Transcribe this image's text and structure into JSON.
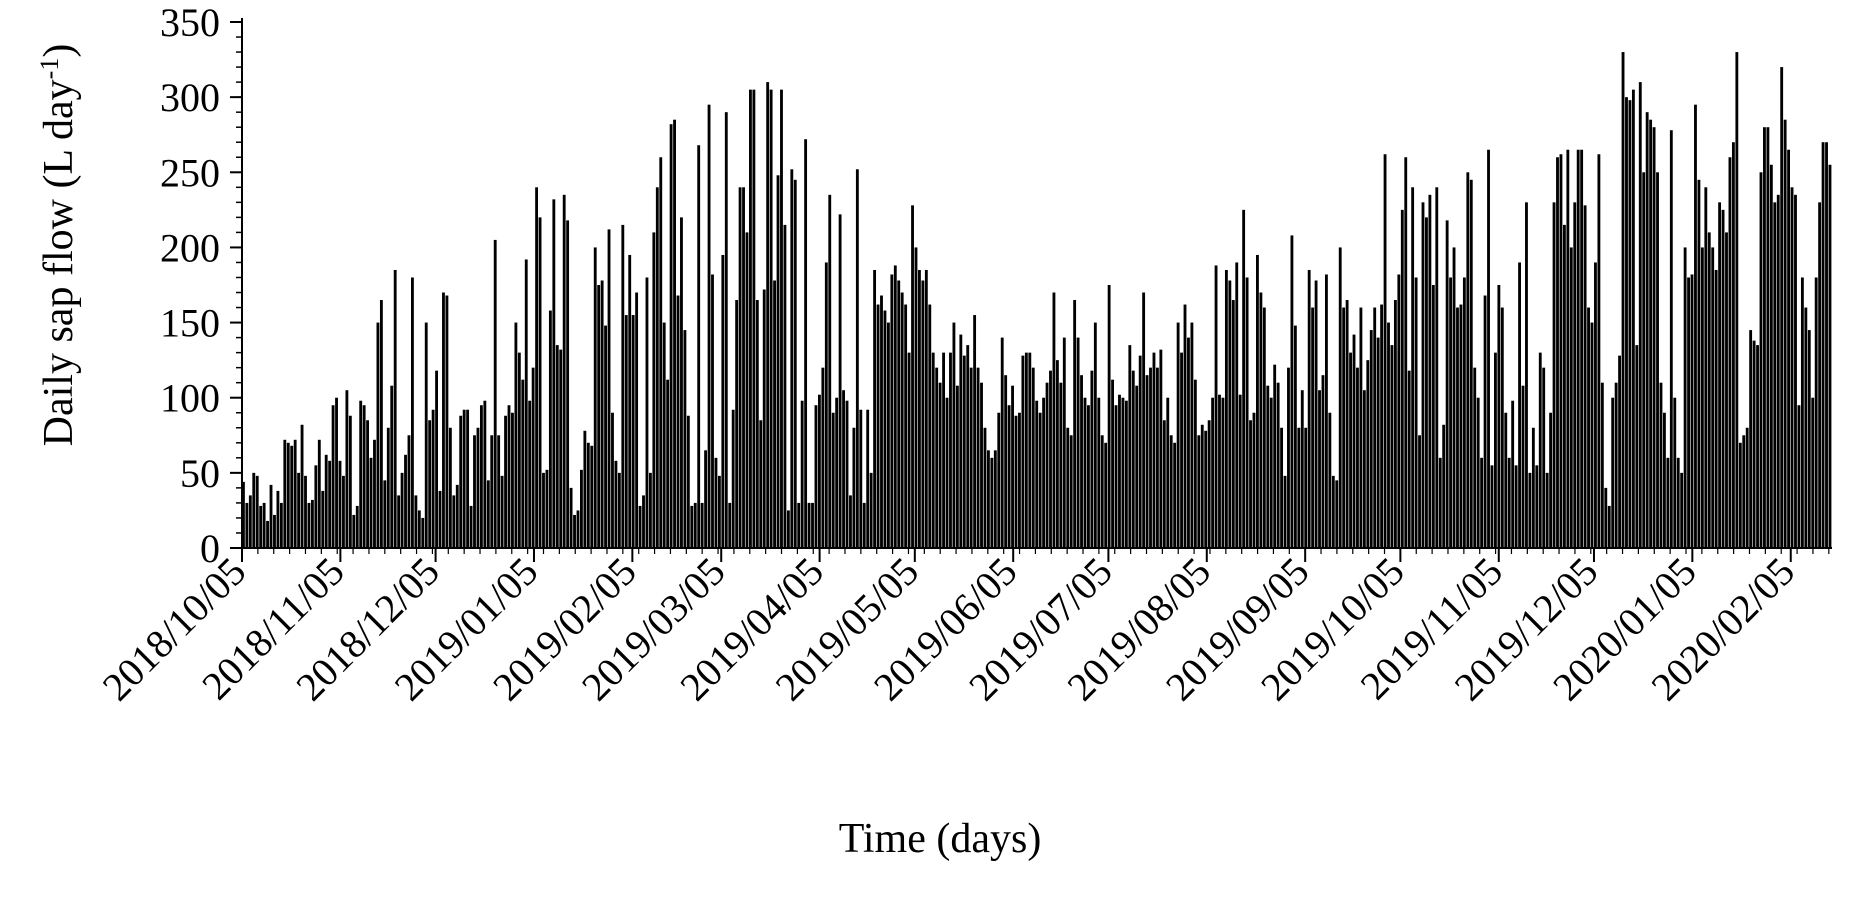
{
  "chart_data": {
    "type": "bar",
    "xlabel": "Time (days)",
    "ylabel_main": "Daily sap flow (L day",
    "ylabel_sup": "-1",
    "ylabel_close": ")",
    "ylim": [
      0,
      350
    ],
    "yticks": [
      0,
      50,
      100,
      150,
      200,
      250,
      300,
      350
    ],
    "grid": false,
    "legend": "none",
    "bar_color": "#000000",
    "x_start": "2018/10/05",
    "x_end": "2020/02/17",
    "xtick_labels": [
      "2018/10/05",
      "2018/11/05",
      "2018/12/05",
      "2019/01/05",
      "2019/02/05",
      "2019/03/05",
      "2019/04/05",
      "2019/05/05",
      "2019/06/05",
      "2019/07/05",
      "2019/08/05",
      "2019/09/05",
      "2019/10/05",
      "2019/11/05",
      "2019/12/05",
      "2020/01/05",
      "2020/02/05"
    ],
    "values": [
      44,
      30,
      35,
      50,
      48,
      28,
      30,
      18,
      42,
      22,
      38,
      30,
      72,
      70,
      68,
      72,
      50,
      82,
      48,
      30,
      32,
      55,
      72,
      38,
      62,
      58,
      95,
      100,
      58,
      48,
      105,
      88,
      22,
      28,
      98,
      95,
      85,
      60,
      72,
      150,
      165,
      45,
      80,
      108,
      185,
      35,
      50,
      62,
      75,
      180,
      35,
      25,
      20,
      150,
      85,
      92,
      118,
      38,
      170,
      168,
      80,
      35,
      42,
      88,
      92,
      92,
      28,
      75,
      80,
      95,
      98,
      45,
      75,
      205,
      75,
      48,
      88,
      95,
      90,
      150,
      130,
      112,
      192,
      98,
      120,
      240,
      220,
      50,
      52,
      158,
      232,
      135,
      132,
      235,
      218,
      40,
      22,
      25,
      52,
      78,
      70,
      68,
      200,
      175,
      178,
      148,
      212,
      90,
      58,
      50,
      215,
      155,
      195,
      155,
      170,
      28,
      35,
      180,
      50,
      210,
      240,
      260,
      150,
      112,
      282,
      285,
      168,
      220,
      145,
      88,
      28,
      30,
      268,
      30,
      65,
      295,
      182,
      60,
      48,
      195,
      290,
      30,
      92,
      165,
      240,
      240,
      210,
      305,
      305,
      165,
      85,
      172,
      310,
      305,
      178,
      248,
      305,
      215,
      25,
      252,
      245,
      30,
      98,
      272,
      30,
      30,
      95,
      102,
      120,
      190,
      235,
      90,
      100,
      222,
      105,
      98,
      35,
      80,
      252,
      92,
      30,
      92,
      50,
      185,
      162,
      168,
      158,
      150,
      182,
      188,
      178,
      170,
      162,
      130,
      228,
      200,
      185,
      178,
      185,
      162,
      130,
      120,
      110,
      130,
      100,
      130,
      150,
      108,
      142,
      128,
      135,
      120,
      155,
      120,
      110,
      80,
      65,
      60,
      65,
      90,
      140,
      115,
      95,
      108,
      88,
      90,
      128,
      130,
      130,
      120,
      98,
      90,
      100,
      110,
      118,
      170,
      125,
      110,
      140,
      80,
      75,
      165,
      140,
      115,
      100,
      95,
      118,
      150,
      100,
      75,
      70,
      175,
      112,
      95,
      102,
      100,
      98,
      135,
      118,
      108,
      128,
      170,
      115,
      120,
      130,
      120,
      132,
      85,
      100,
      75,
      70,
      150,
      130,
      162,
      140,
      150,
      112,
      75,
      82,
      78,
      85,
      100,
      188,
      102,
      100,
      185,
      178,
      165,
      190,
      102,
      225,
      180,
      85,
      90,
      195,
      170,
      160,
      108,
      100,
      122,
      110,
      80,
      48,
      120,
      208,
      148,
      80,
      105,
      80,
      185,
      160,
      178,
      105,
      115,
      182,
      90,
      48,
      45,
      200,
      160,
      165,
      130,
      142,
      120,
      160,
      105,
      125,
      145,
      160,
      140,
      162,
      262,
      150,
      135,
      165,
      182,
      225,
      260,
      118,
      240,
      180,
      75,
      230,
      220,
      235,
      175,
      240,
      60,
      82,
      218,
      180,
      200,
      160,
      162,
      180,
      250,
      245,
      120,
      100,
      60,
      168,
      265,
      55,
      130,
      175,
      160,
      90,
      60,
      98,
      55,
      190,
      108,
      230,
      50,
      80,
      55,
      130,
      120,
      50,
      90,
      230,
      260,
      262,
      215,
      265,
      200,
      230,
      265,
      265,
      228,
      160,
      150,
      190,
      262,
      110,
      40,
      28,
      100,
      110,
      128,
      330,
      300,
      298,
      305,
      135,
      310,
      250,
      290,
      285,
      280,
      250,
      110,
      90,
      60,
      278,
      100,
      60,
      50,
      200,
      180,
      182,
      295,
      245,
      200,
      240,
      210,
      200,
      185,
      230,
      225,
      210,
      260,
      270,
      330,
      70,
      75,
      80,
      145,
      138,
      135,
      250,
      280,
      280,
      255,
      230,
      235,
      320,
      285,
      265,
      240,
      235,
      95,
      180,
      160,
      145,
      100,
      180,
      230,
      270,
      270,
      255
    ]
  }
}
